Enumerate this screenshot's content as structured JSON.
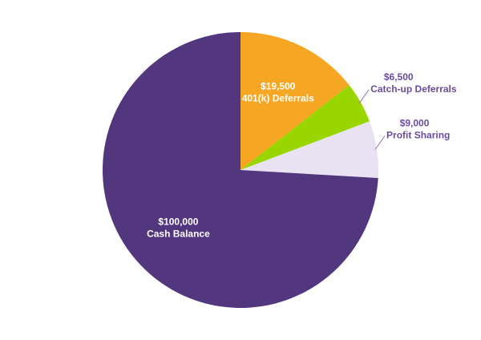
{
  "chart_data": {
    "type": "pie",
    "categories": [
      "401(k) Deferrals",
      "Catch-up Deferrals",
      "Profit Sharing",
      "Cash Balance"
    ],
    "values": [
      19500,
      6500,
      9000,
      100000
    ],
    "value_labels": [
      "$19,500",
      "$6,500",
      "$9,000",
      "$100,000"
    ],
    "colors": [
      "#f5a623",
      "#99d600",
      "#e9e2f2",
      "#52367e"
    ]
  }
}
